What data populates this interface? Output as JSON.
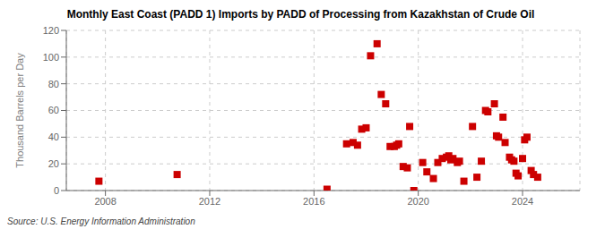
{
  "chart_data": {
    "type": "scatter",
    "title": "Monthly East Coast (PADD 1) Imports by PADD of Processing from Kazakhstan of Crude Oil",
    "ylabel": "Thousand Barrels per Day",
    "annotations": [
      "Source: U.S. Energy Information Administration"
    ],
    "x": [
      2007.75,
      2010.75,
      2016.5,
      2017.25,
      2017.5,
      2017.67,
      2017.83,
      2018.0,
      2018.17,
      2018.42,
      2018.58,
      2018.75,
      2018.92,
      2019.08,
      2019.17,
      2019.25,
      2019.42,
      2019.58,
      2019.67,
      2019.83,
      2020.17,
      2020.33,
      2020.58,
      2020.75,
      2020.92,
      2021.08,
      2021.17,
      2021.25,
      2021.33,
      2021.5,
      2021.58,
      2021.75,
      2022.08,
      2022.25,
      2022.42,
      2022.58,
      2022.67,
      2022.92,
      2023.0,
      2023.08,
      2023.25,
      2023.33,
      2023.5,
      2023.58,
      2023.67,
      2023.75,
      2023.83,
      2024.0,
      2024.08,
      2024.17,
      2024.33,
      2024.42,
      2024.58
    ],
    "values": [
      7,
      12,
      1,
      35,
      36,
      34,
      46,
      47,
      101,
      110,
      72,
      65,
      33,
      33,
      34,
      35,
      18,
      17,
      48,
      0,
      21,
      14,
      9,
      21,
      24,
      25,
      26,
      23,
      24,
      21,
      22,
      7,
      48,
      10,
      22,
      60,
      59,
      65,
      41,
      40,
      55,
      36,
      25,
      23,
      22,
      13,
      11,
      24,
      38,
      40,
      15,
      12,
      10
    ],
    "color": "#cc0000",
    "marker": "square",
    "xlim": [
      2006.5,
      2026.2
    ],
    "xticks": [
      2008,
      2012,
      2016,
      2020,
      2024
    ],
    "ylim": [
      0,
      120
    ],
    "yticks": [
      0,
      20,
      40,
      60,
      80,
      100,
      120
    ],
    "grid": true
  }
}
